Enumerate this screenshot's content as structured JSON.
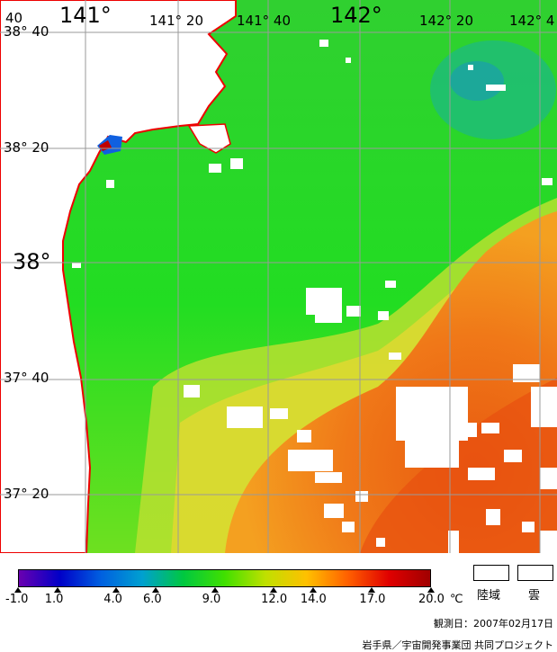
{
  "map": {
    "lon_labels": [
      "141°",
      "141° 20",
      "141° 40",
      "142°",
      "142° 20",
      "142° 4"
    ],
    "corner_label": "40",
    "lat_labels": [
      "38° 40",
      "38° 20",
      "38°",
      "37° 40",
      "37° 20"
    ],
    "colors": {
      "sea_cold": "#38c238",
      "sea_green": "#22dd22",
      "sea_yellow": "#c8e030",
      "sea_orange": "#f07818",
      "sea_red": "#ee5510",
      "land": "#ffffff",
      "coastline": "#ee0000",
      "grid": "#9a9a9a"
    }
  },
  "colorbar": {
    "ticks": [
      "-1.0",
      "1.0",
      "4.0",
      "6.0",
      "9.0",
      "12.0",
      "14.0",
      "17.0",
      "20.0"
    ],
    "unit": "℃",
    "stops": [
      "#6a00b0",
      "#0000c8",
      "#0060e0",
      "#00a0d0",
      "#00c840",
      "#40e000",
      "#c0e000",
      "#ffc000",
      "#ff6000",
      "#e00000",
      "#a00000"
    ]
  },
  "legend": {
    "land_label": "陸域",
    "cloud_label": "雲"
  },
  "observation_date": "観測日：2007年02月17日",
  "credit": "岩手県／宇宙開発事業団 共同プロジェクト"
}
